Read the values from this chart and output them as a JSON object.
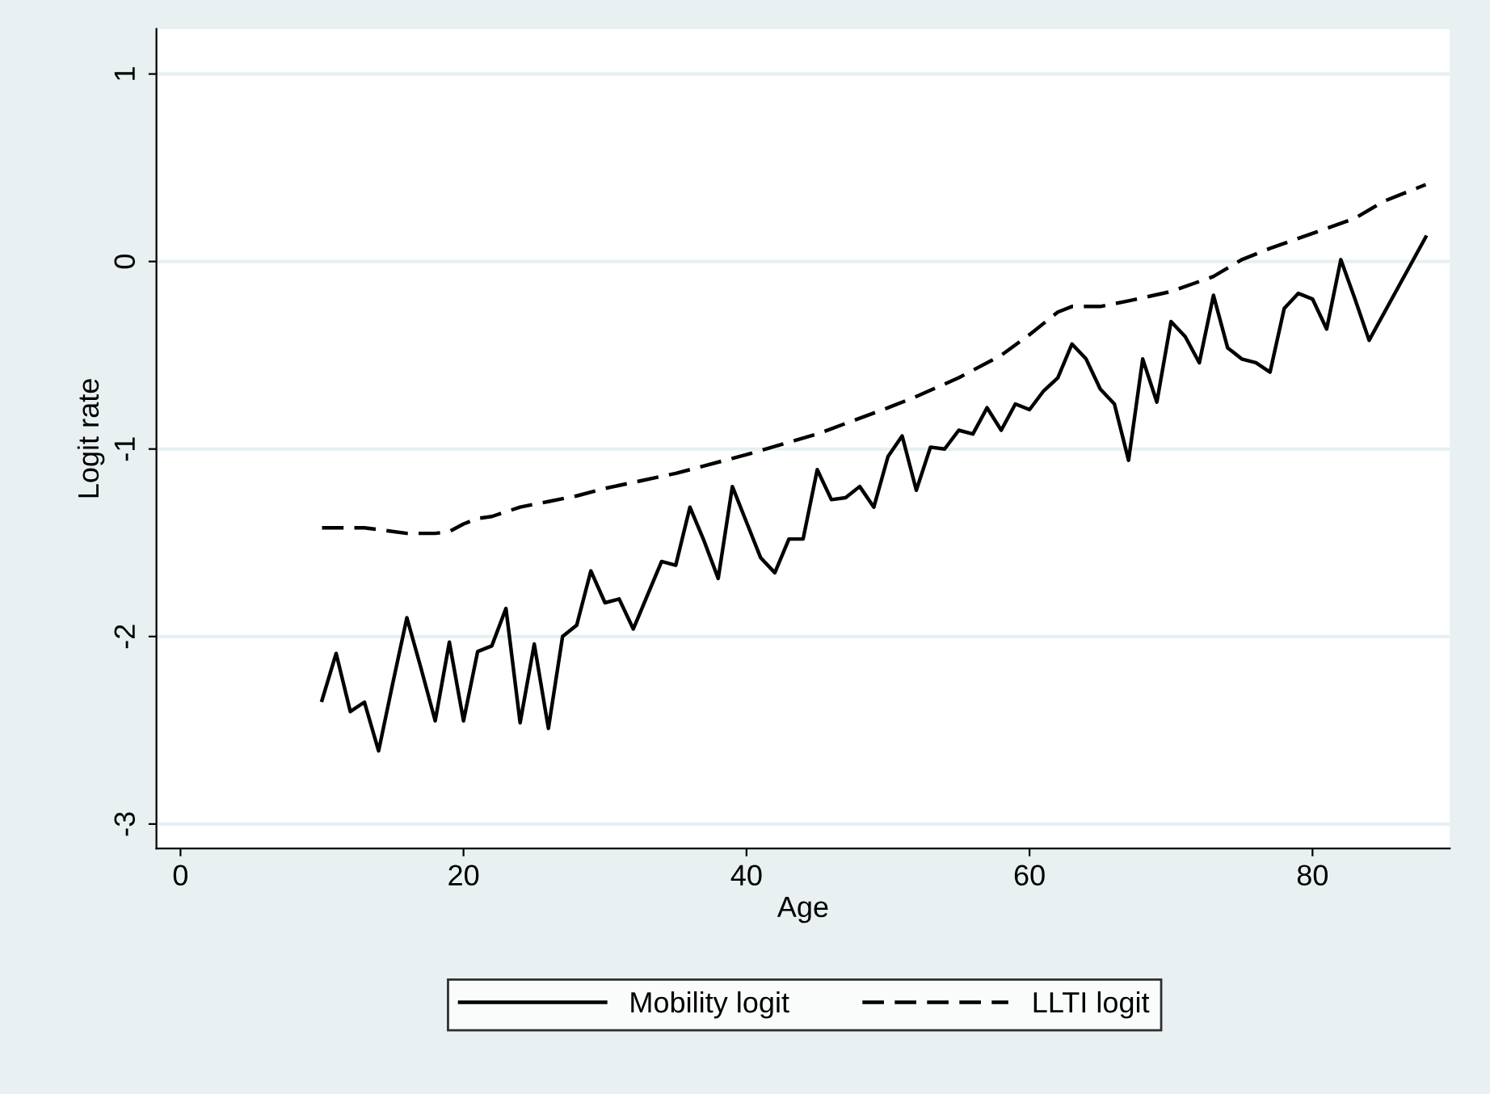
{
  "chart_data": {
    "type": "line",
    "xlabel": "Age",
    "ylabel": "Logit rate",
    "xlim": [
      -1.7,
      89.7
    ],
    "ylim": [
      -3.13,
      1.24
    ],
    "xticks": [
      0,
      20,
      40,
      60,
      80
    ],
    "yticks": [
      -3,
      -2,
      -1,
      0,
      1
    ],
    "grid": "y",
    "legend": "bottom",
    "marker": "none",
    "series": [
      {
        "name": "Mobility logit",
        "color": "#000000",
        "line_style": "solid",
        "x": [
          10,
          11,
          12,
          13,
          14,
          15,
          16,
          17,
          18,
          19,
          20,
          21,
          22,
          23,
          24,
          25,
          26,
          27,
          28,
          29,
          30,
          31,
          32,
          33,
          34,
          35,
          36,
          37,
          38,
          39,
          40,
          41,
          42,
          43,
          44,
          45,
          46,
          47,
          48,
          49,
          50,
          51,
          52,
          53,
          54,
          55,
          56,
          57,
          58,
          59,
          60,
          61,
          62,
          63,
          64,
          65,
          66,
          67,
          68,
          69,
          70,
          71,
          72,
          73,
          74,
          75,
          76,
          77,
          78,
          79,
          80,
          81,
          82,
          83,
          84,
          88
        ],
        "values": [
          -2.34,
          -2.09,
          -2.4,
          -2.35,
          -2.61,
          -2.25,
          -1.9,
          -2.17,
          -2.45,
          -2.03,
          -2.45,
          -2.08,
          -2.05,
          -1.85,
          -2.46,
          -2.04,
          -2.49,
          -2.0,
          -1.94,
          -1.65,
          -1.82,
          -1.8,
          -1.96,
          -1.78,
          -1.6,
          -1.62,
          -1.31,
          -1.49,
          -1.69,
          -1.2,
          -1.39,
          -1.58,
          -1.66,
          -1.48,
          -1.48,
          -1.11,
          -1.27,
          -1.26,
          -1.2,
          -1.31,
          -1.04,
          -0.93,
          -1.22,
          -0.99,
          -1.0,
          -0.9,
          -0.92,
          -0.78,
          -0.9,
          -0.76,
          -0.79,
          -0.69,
          -0.62,
          -0.44,
          -0.52,
          -0.68,
          -0.76,
          -1.06,
          -0.52,
          -0.75,
          -0.32,
          -0.4,
          -0.54,
          -0.18,
          -0.46,
          -0.52,
          -0.54,
          -0.59,
          -0.25,
          -0.17,
          -0.2,
          -0.36,
          0.01,
          -0.2,
          -0.42,
          0.13
        ]
      },
      {
        "name": "LLTI logit",
        "color": "#000000",
        "line_style": "dashed",
        "x": [
          10,
          13,
          14,
          16,
          18,
          19,
          20,
          21,
          22,
          24,
          26,
          28,
          30,
          35,
          40,
          45,
          50,
          52,
          55,
          58,
          60,
          62,
          63,
          65,
          67,
          70,
          73,
          75,
          77,
          80,
          83,
          85,
          88
        ],
        "values": [
          -1.42,
          -1.42,
          -1.43,
          -1.45,
          -1.45,
          -1.44,
          -1.4,
          -1.37,
          -1.36,
          -1.31,
          -1.28,
          -1.25,
          -1.21,
          -1.13,
          -1.03,
          -0.92,
          -0.78,
          -0.72,
          -0.62,
          -0.5,
          -0.39,
          -0.27,
          -0.24,
          -0.24,
          -0.21,
          -0.16,
          -0.08,
          0.01,
          0.07,
          0.15,
          0.23,
          0.32,
          0.41
        ]
      }
    ]
  }
}
